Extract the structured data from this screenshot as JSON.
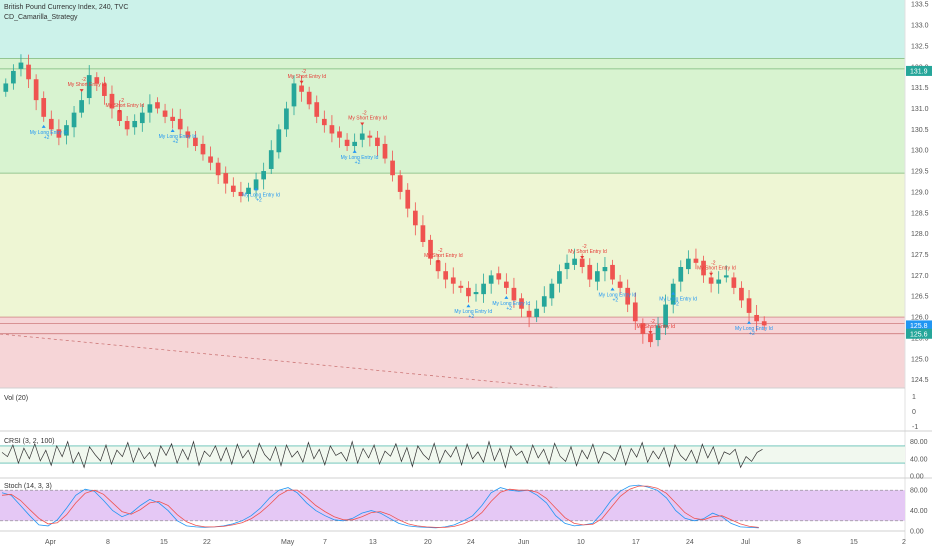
{
  "header": {
    "title": "British Pound Currency Index, 240, TVC",
    "strategy": "CD_Camarilla_Strategy"
  },
  "colors": {
    "bull": "#26a69a",
    "bear": "#ef5350",
    "zone_top": "#ccf2ea",
    "zone_upper": "#d8f3d0",
    "zone_mid": "#eef6d4",
    "zone_low": "#f6d5d7",
    "level_line": "#7cb87c",
    "price_tag_green": "#26a69a",
    "price_tag_blue": "#2196f3",
    "rsi_line": "#333333",
    "stoch_k": "#2196f3",
    "stoch_d": "#ef5350",
    "stoch_band": "#e5c8f5",
    "long_signal": "#2196f3",
    "short_signal": "#e53935"
  },
  "price_axis": {
    "ticks": [
      "133.5",
      "133.0",
      "132.5",
      "132.0",
      "131.5",
      "131.0",
      "130.5",
      "130.0",
      "129.5",
      "129.0",
      "128.5",
      "128.0",
      "127.5",
      "127.0",
      "126.5",
      "126.0",
      "125.5",
      "125.0",
      "124.5"
    ],
    "range": [
      124.3,
      133.6
    ],
    "bands": [
      {
        "name": "top",
        "from": 132.2,
        "to": 133.6
      },
      {
        "name": "upper",
        "from": 129.45,
        "to": 132.2
      },
      {
        "name": "mid",
        "from": 126.0,
        "to": 129.45
      },
      {
        "name": "low",
        "from": 124.3,
        "to": 126.0
      }
    ],
    "levels": [
      132.2,
      131.95,
      129.45,
      126.0,
      125.85,
      125.6
    ],
    "price_tags": [
      {
        "value": 131.9,
        "label": "131.9",
        "color": "green"
      },
      {
        "value": 125.8,
        "label": "125.8",
        "color": "blue"
      },
      {
        "value": 125.6,
        "label": "125.6",
        "color": "green"
      }
    ]
  },
  "date_axis": {
    "labels": [
      "Apr",
      "8",
      "15",
      "22",
      "May",
      "7",
      "13",
      "20",
      "24",
      "Jun",
      "10",
      "17",
      "24",
      "Jul",
      "8",
      "15",
      "2"
    ]
  },
  "vol_pane": {
    "label": "Vol (20)",
    "ticks": [
      "1",
      "0",
      "-1"
    ]
  },
  "crsi_pane": {
    "label": "CRSI (3, 2, 100)",
    "ticks": [
      "80.00",
      "40.00",
      "0.00"
    ],
    "values": [
      55,
      45,
      72,
      30,
      65,
      40,
      75,
      35,
      60,
      25,
      70,
      45,
      80,
      30,
      55,
      20,
      68,
      50,
      35,
      72,
      28,
      60,
      45,
      78,
      32,
      65,
      40,
      55,
      22,
      70,
      48,
      75,
      30,
      62,
      38,
      80,
      25,
      58,
      45,
      70,
      35,
      66,
      28,
      74,
      42,
      60,
      30,
      76,
      50,
      36,
      68,
      24,
      72,
      44,
      58,
      32,
      78,
      40,
      62,
      26,
      70,
      48,
      55,
      35,
      80,
      30,
      64,
      42,
      72,
      28,
      58,
      46,
      75,
      34,
      66,
      22,
      70,
      50,
      38,
      76,
      30,
      60,
      44,
      68,
      26,
      74,
      40,
      56,
      32,
      80,
      36,
      64,
      20,
      70,
      48,
      58,
      30,
      72,
      42,
      62,
      28,
      76,
      46,
      34,
      68,
      24,
      60,
      40,
      74,
      30,
      56,
      50,
      36,
      70,
      26,
      64,
      44,
      78,
      32,
      58,
      40,
      66,
      22,
      72,
      48,
      36,
      60,
      30,
      74,
      42,
      68,
      28,
      56,
      50,
      62,
      20,
      45,
      34,
      55,
      62
    ]
  },
  "stoch_pane": {
    "label": "Stoch (14, 3, 3)",
    "ticks": [
      "80.00",
      "40.00",
      "0.00"
    ],
    "k": [
      75,
      70,
      50,
      30,
      12,
      10,
      22,
      45,
      70,
      82,
      78,
      60,
      40,
      28,
      35,
      50,
      62,
      55,
      40,
      20,
      10,
      8,
      7,
      8,
      10,
      14,
      20,
      30,
      45,
      65,
      80,
      85,
      75,
      55,
      40,
      30,
      22,
      20,
      25,
      35,
      40,
      35,
      25,
      15,
      10,
      8,
      7,
      6,
      8,
      12,
      20,
      30,
      50,
      75,
      85,
      80,
      78,
      80,
      70,
      55,
      30,
      15,
      10,
      12,
      15,
      35,
      60,
      78,
      88,
      90,
      86,
      80,
      65,
      40,
      25,
      20,
      24,
      35,
      28,
      15,
      8,
      7,
      6
    ],
    "d": [
      70,
      72,
      60,
      42,
      25,
      14,
      16,
      32,
      55,
      74,
      80,
      72,
      55,
      38,
      33,
      42,
      55,
      58,
      50,
      32,
      18,
      11,
      8,
      8,
      9,
      12,
      16,
      24,
      36,
      52,
      70,
      80,
      80,
      66,
      50,
      38,
      28,
      22,
      22,
      28,
      36,
      38,
      32,
      22,
      14,
      10,
      8,
      7,
      7,
      9,
      14,
      22,
      36,
      58,
      76,
      82,
      80,
      80,
      76,
      64,
      45,
      26,
      15,
      12,
      13,
      24,
      46,
      68,
      82,
      88,
      88,
      84,
      74,
      55,
      36,
      25,
      22,
      28,
      30,
      22,
      14,
      9,
      7
    ]
  },
  "signals": [
    {
      "type": "long",
      "label": "My Long Entry Id",
      "n": "+2"
    },
    {
      "type": "short",
      "label": "My Short Entry Id",
      "n": "-2"
    },
    {
      "type": "short",
      "label": "My Short Entry Id",
      "n": "-2"
    },
    {
      "type": "long",
      "label": "My Long Entry Id",
      "n": "+2"
    },
    {
      "type": "long",
      "label": "My Long Entry Id",
      "n": "+2"
    },
    {
      "type": "short",
      "label": "My Short Entry Id",
      "n": "-2"
    },
    {
      "type": "long",
      "label": "My Long Entry Id",
      "n": "+2"
    },
    {
      "type": "short",
      "label": "My Short Entry Id",
      "n": "-2"
    },
    {
      "type": "short",
      "label": "My Short Entry Id",
      "n": "-2"
    },
    {
      "type": "long",
      "label": "My Long Entry Id",
      "n": "+2"
    },
    {
      "type": "long",
      "label": "My Long Entry Id",
      "n": "+2"
    },
    {
      "type": "short",
      "label": "My Short Entry Id",
      "n": "-2"
    },
    {
      "type": "long",
      "label": "My Long Entry Id",
      "n": "+2"
    },
    {
      "type": "short",
      "label": "My Short Entry Id",
      "n": "-2"
    },
    {
      "type": "long",
      "label": "My Long Entry Id",
      "n": "+2"
    },
    {
      "type": "short",
      "label": "My Short Entry Id",
      "n": "-2"
    },
    {
      "type": "long",
      "label": "My Long Entry Id",
      "n": "+2"
    }
  ],
  "chart_data": {
    "type": "candlestick",
    "title": "British Pound Currency Index, 240, TVC",
    "ylim": [
      124.3,
      133.6
    ],
    "close_path": [
      131.6,
      131.9,
      132.1,
      131.7,
      131.2,
      130.8,
      130.5,
      130.3,
      130.6,
      130.9,
      131.2,
      131.8,
      131.6,
      131.3,
      131.0,
      130.7,
      130.5,
      130.7,
      130.9,
      131.1,
      131.0,
      130.8,
      130.7,
      130.5,
      130.3,
      130.1,
      129.9,
      129.7,
      129.4,
      129.2,
      129.0,
      128.9,
      129.1,
      129.3,
      129.5,
      130.0,
      130.5,
      131.0,
      131.6,
      131.4,
      131.1,
      130.8,
      130.6,
      130.4,
      130.3,
      130.1,
      130.2,
      130.4,
      130.3,
      130.1,
      129.8,
      129.4,
      129.0,
      128.6,
      128.2,
      127.8,
      127.4,
      127.1,
      126.9,
      126.8,
      126.7,
      126.5,
      126.6,
      126.8,
      127.0,
      126.9,
      126.7,
      126.4,
      126.2,
      126.0,
      126.2,
      126.5,
      126.8,
      127.1,
      127.3,
      127.4,
      127.2,
      126.9,
      127.1,
      127.2,
      126.9,
      126.7,
      126.3,
      125.9,
      125.6,
      125.4,
      125.8,
      126.3,
      126.8,
      127.2,
      127.4,
      127.3,
      127.0,
      126.8,
      126.9,
      127.0,
      126.7,
      126.4,
      126.1,
      125.9,
      125.8
    ]
  }
}
